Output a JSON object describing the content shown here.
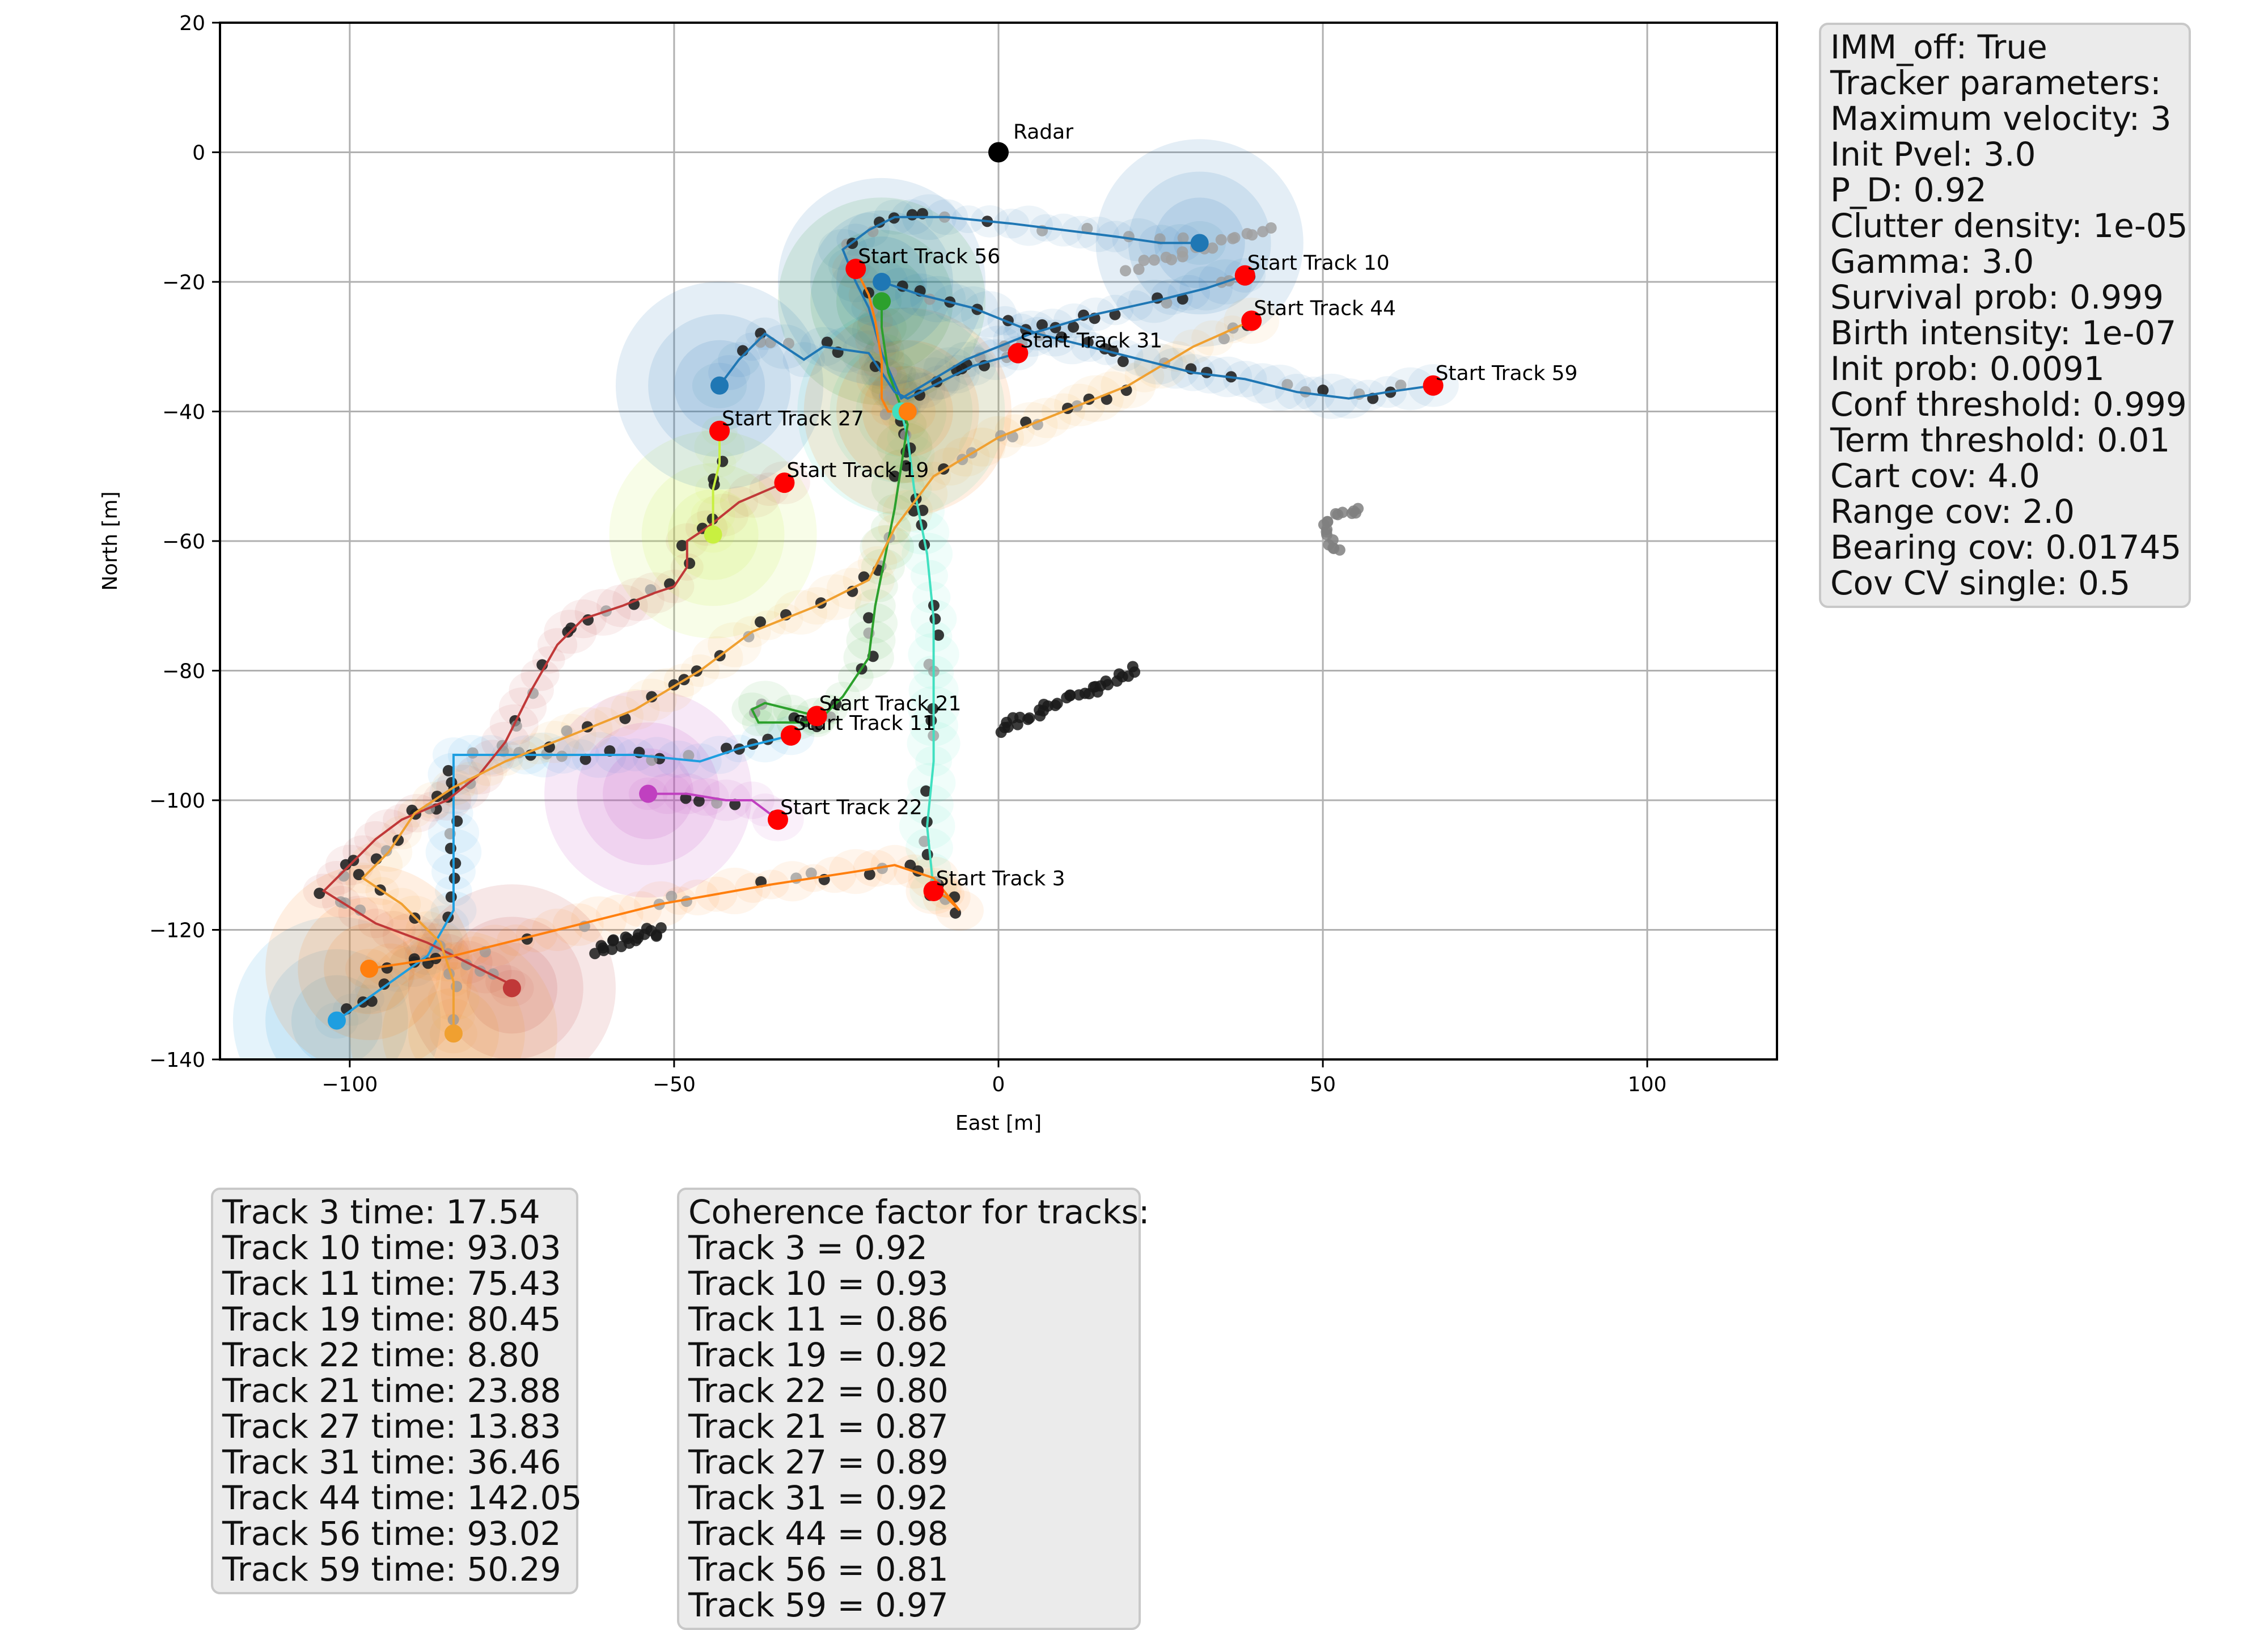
{
  "chart_data": {
    "type": "scatter",
    "xlabel": "East [m]",
    "ylabel": "North [m]",
    "xlim": [
      -120,
      120
    ],
    "ylim": [
      -140,
      20
    ],
    "xticks": [
      -100,
      -50,
      0,
      50,
      100
    ],
    "yticks": [
      20,
      0,
      -20,
      -40,
      -60,
      -80,
      -100,
      -120,
      -140
    ],
    "grid": true,
    "radar": {
      "label": "Radar",
      "x": 0,
      "y": 0
    },
    "tracks": [
      {
        "name": "Track 3",
        "label": "Start Track 3",
        "color": "#40e0c0",
        "start": [
          -10,
          -114
        ],
        "path": [
          [
            -10,
            -114
          ],
          [
            -11,
            -104
          ],
          [
            -10,
            -94
          ],
          [
            -10,
            -83
          ],
          [
            -10,
            -72
          ],
          [
            -11,
            -62
          ],
          [
            -13,
            -52
          ],
          [
            -14,
            -44
          ],
          [
            -15,
            -40
          ]
        ]
      },
      {
        "name": "Track 10",
        "label": "Start Track 10",
        "color": "#1f77b4",
        "start": [
          38,
          -19
        ],
        "path": [
          [
            38,
            -19
          ],
          [
            32,
            -21
          ],
          [
            24,
            -23
          ],
          [
            15,
            -25
          ],
          [
            5,
            -28
          ],
          [
            -5,
            -32
          ],
          [
            -15,
            -38
          ],
          [
            -18,
            -31
          ],
          [
            -20,
            -24
          ],
          [
            -22,
            -20
          ],
          [
            -24,
            -15
          ],
          [
            -20,
            -12
          ],
          [
            -16,
            -10
          ],
          [
            -8,
            -10
          ],
          [
            2,
            -11
          ],
          [
            10,
            -12
          ],
          [
            18,
            -13
          ],
          [
            25,
            -14
          ],
          [
            31,
            -14
          ]
        ]
      },
      {
        "name": "Track 11",
        "label": "Start Track 11",
        "color": "#1e9ee0",
        "start": [
          -32,
          -90
        ],
        "path": [
          [
            -32,
            -90
          ],
          [
            -36,
            -91
          ],
          [
            -40,
            -92
          ],
          [
            -46,
            -94
          ],
          [
            -56,
            -93
          ],
          [
            -70,
            -93
          ],
          [
            -84,
            -93
          ],
          [
            -84,
            -105
          ],
          [
            -84,
            -117
          ],
          [
            -88,
            -124
          ],
          [
            -95,
            -129
          ],
          [
            -102,
            -134
          ]
        ]
      },
      {
        "name": "Track 19",
        "label": "Start Track 19",
        "color": "#c03838",
        "start": [
          -33,
          -51
        ],
        "path": [
          [
            -33,
            -51
          ],
          [
            -40,
            -54
          ],
          [
            -45,
            -58
          ],
          [
            -48,
            -60
          ],
          [
            -48,
            -64
          ],
          [
            -50,
            -67
          ],
          [
            -53,
            -68
          ],
          [
            -58,
            -70
          ],
          [
            -64,
            -72
          ],
          [
            -68,
            -76
          ],
          [
            -72,
            -83
          ],
          [
            -76,
            -91
          ],
          [
            -80,
            -96
          ],
          [
            -85,
            -100
          ],
          [
            -92,
            -103
          ],
          [
            -96,
            -106
          ],
          [
            -100,
            -110
          ],
          [
            -104,
            -114
          ],
          [
            -96,
            -119
          ],
          [
            -88,
            -122
          ],
          [
            -82,
            -125
          ],
          [
            -76,
            -128
          ],
          [
            -75,
            -129
          ]
        ]
      },
      {
        "name": "Track 21",
        "label": "Start Track 21",
        "color": "#2ca02c",
        "start": [
          -28,
          -87
        ],
        "path": [
          [
            -28,
            -87
          ],
          [
            -32,
            -86
          ],
          [
            -36,
            -85
          ],
          [
            -38,
            -86
          ],
          [
            -37,
            -88
          ],
          [
            -34,
            -88
          ],
          [
            -28,
            -88
          ],
          [
            -24,
            -84
          ],
          [
            -20,
            -78
          ],
          [
            -19,
            -70
          ],
          [
            -16,
            -55
          ],
          [
            -14,
            -42
          ],
          [
            -17,
            -34
          ],
          [
            -18,
            -27
          ],
          [
            -18,
            -23
          ]
        ]
      },
      {
        "name": "Track 22",
        "label": "Start Track 22",
        "color": "#c040c0",
        "start": [
          -34,
          -103
        ],
        "path": [
          [
            -34,
            -103
          ],
          [
            -38,
            -100
          ],
          [
            -42,
            -100
          ],
          [
            -48,
            -99
          ],
          [
            -54,
            -99
          ]
        ]
      },
      {
        "name": "Track 27",
        "label": "Start Track 27",
        "color": "#c8f040",
        "start": [
          -43,
          -43
        ],
        "path": [
          [
            -43,
            -43
          ],
          [
            -43,
            -48
          ],
          [
            -44,
            -52
          ],
          [
            -44,
            -56
          ],
          [
            -44,
            -59
          ]
        ]
      },
      {
        "name": "Track 31",
        "label": "Start Track 31",
        "color": "#1f77b4",
        "start": [
          3,
          -31
        ],
        "path": [
          [
            3,
            -31
          ],
          [
            -4,
            -33
          ],
          [
            -14,
            -38
          ],
          [
            -16,
            -37
          ],
          [
            -20,
            -31
          ],
          [
            -27,
            -30
          ],
          [
            -30,
            -32
          ],
          [
            -33,
            -30
          ],
          [
            -36,
            -28
          ],
          [
            -40,
            -32
          ],
          [
            -43,
            -36
          ]
        ]
      },
      {
        "name": "Track 44",
        "label": "Start Track 44",
        "color": "#f0a030",
        "start": [
          39,
          -26
        ],
        "path": [
          [
            39,
            -26
          ],
          [
            30,
            -30
          ],
          [
            20,
            -36
          ],
          [
            10,
            -40
          ],
          [
            0,
            -44
          ],
          [
            -10,
            -50
          ],
          [
            -16,
            -58
          ],
          [
            -20,
            -66
          ],
          [
            -28,
            -70
          ],
          [
            -38,
            -74
          ],
          [
            -46,
            -80
          ],
          [
            -56,
            -86
          ],
          [
            -66,
            -90
          ],
          [
            -76,
            -94
          ],
          [
            -84,
            -98
          ],
          [
            -90,
            -102
          ],
          [
            -94,
            -108
          ],
          [
            -98,
            -112
          ],
          [
            -92,
            -116
          ],
          [
            -86,
            -122
          ],
          [
            -84,
            -128
          ],
          [
            -84,
            -136
          ]
        ]
      },
      {
        "name": "Track 56",
        "label": "Start Track 56",
        "color": "#ff7f0e",
        "start": [
          -22,
          -18
        ],
        "path": [
          [
            -22,
            -18
          ],
          [
            -20,
            -22
          ],
          [
            -19,
            -26
          ],
          [
            -18,
            -32
          ],
          [
            -18,
            -38
          ],
          [
            -17,
            -40
          ],
          [
            -14,
            -40
          ]
        ]
      },
      {
        "name": "Track 59",
        "label": "Start Track 59",
        "color": "#1f77b4",
        "start": [
          67,
          -36
        ],
        "path": [
          [
            67,
            -36
          ],
          [
            60,
            -37
          ],
          [
            54,
            -38
          ],
          [
            46,
            -37
          ],
          [
            38,
            -35
          ],
          [
            30,
            -34
          ],
          [
            22,
            -32
          ],
          [
            14,
            -30
          ],
          [
            6,
            -28
          ],
          [
            -4,
            -24
          ],
          [
            -12,
            -22
          ],
          [
            -18,
            -20
          ]
        ]
      },
      {
        "name": "",
        "label": "",
        "color": "#ff7f0e",
        "start": [
          -97,
          -126
        ],
        "path": [
          [
            -10,
            -114
          ],
          [
            -8,
            -115
          ],
          [
            -6,
            -117
          ],
          [
            -10,
            -112
          ],
          [
            -16,
            -110
          ],
          [
            -22,
            -111
          ],
          [
            -35,
            -113
          ],
          [
            -52,
            -116
          ],
          [
            -68,
            -120
          ],
          [
            -84,
            -124
          ],
          [
            -97,
            -126
          ]
        ]
      }
    ]
  },
  "param_box": {
    "lines": [
      "IMM_off: True",
      "Tracker parameters:",
      "Maximum velocity: 3",
      "Init Pvel: 3.0",
      "P_D: 0.92",
      "Clutter density: 1e-05",
      "Gamma: 3.0",
      "Survival prob: 0.999",
      "Birth intensity: 1e-07",
      "Init prob: 0.0091",
      "Conf threshold: 0.999",
      "Term threshold: 0.01",
      "Cart cov: 4.0",
      "Range cov: 2.0",
      "Bearing cov: 0.01745",
      "Cov CV single: 0.5"
    ]
  },
  "time_box": {
    "lines": [
      "Track 3 time: 17.54",
      "Track 10 time: 93.03",
      "Track 11 time: 75.43",
      "Track 19 time: 80.45",
      "Track 22 time: 8.80",
      "Track 21 time: 23.88",
      "Track 27 time: 13.83",
      "Track 31 time: 36.46",
      "Track 44 time: 142.05",
      "Track 56 time: 93.02",
      "Track 59 time: 50.29"
    ]
  },
  "coherence_box": {
    "lines": [
      "Coherence factor for tracks:",
      "Track 3 = 0.92",
      "Track 10 = 0.93",
      "Track 11 = 0.86",
      "Track 19 = 0.92",
      "Track 22 = 0.80",
      "Track 21 = 0.87",
      "Track 27 = 0.89",
      "Track 31 = 0.92",
      "Track 44 = 0.98",
      "Track 56 = 0.81",
      "Track 59 = 0.97"
    ]
  }
}
